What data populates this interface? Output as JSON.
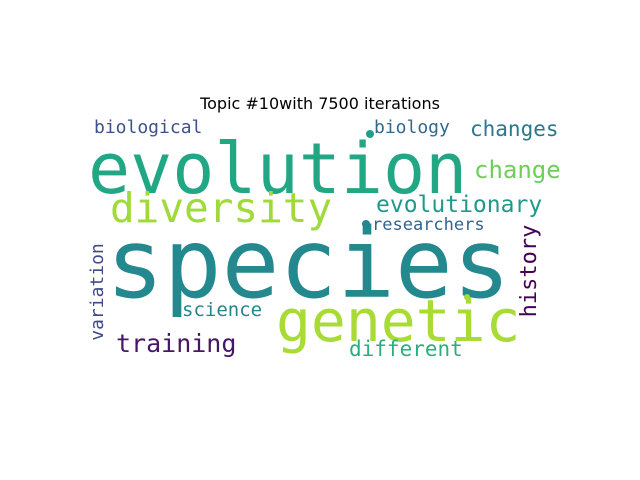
{
  "title": "Topic #10with 7500 iterations",
  "words": [
    {
      "text": "species",
      "color": "#23898e"
    },
    {
      "text": "evolution",
      "color": "#22a785"
    },
    {
      "text": "genetic",
      "color": "#a8db34"
    },
    {
      "text": "diversity",
      "color": "#a0da39"
    },
    {
      "text": "evolutionary",
      "color": "#1f9a8a"
    },
    {
      "text": "change",
      "color": "#6ece58"
    },
    {
      "text": "changes",
      "color": "#2a788e"
    },
    {
      "text": "biological",
      "color": "#3b528b"
    },
    {
      "text": "biology",
      "color": "#31688e"
    },
    {
      "text": "researchers",
      "color": "#33638d"
    },
    {
      "text": "history",
      "color": "#440154"
    },
    {
      "text": "variation",
      "color": "#3e4a89"
    },
    {
      "text": "science",
      "color": "#25858e"
    },
    {
      "text": "training",
      "color": "#481668"
    },
    {
      "text": "different",
      "color": "#29af7f"
    }
  ],
  "dot_colors": [
    "#1f9e89",
    "#25848e",
    "#a5db36"
  ]
}
